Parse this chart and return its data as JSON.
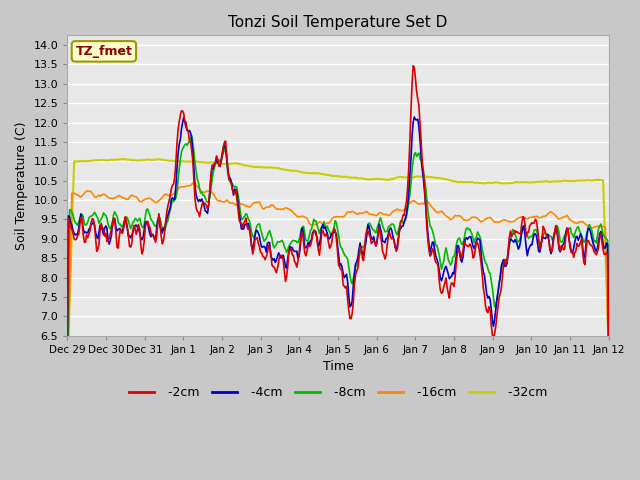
{
  "title": "Tonzi Soil Temperature Set D",
  "xlabel": "Time",
  "ylabel": "Soil Temperature (C)",
  "ylim": [
    6.5,
    14.25
  ],
  "yticks": [
    6.5,
    7.0,
    7.5,
    8.0,
    8.5,
    9.0,
    9.5,
    10.0,
    10.5,
    11.0,
    11.5,
    12.0,
    12.5,
    13.0,
    13.5,
    14.0
  ],
  "bg_color": "#c8c8c8",
  "plot_bg": "#e8e8e8",
  "annotation_label": "TZ_fmet",
  "annotation_color": "#8b0000",
  "annotation_bg": "#ffffcc",
  "series": {
    "-2cm": {
      "color": "#dd0000",
      "lw": 1.2
    },
    "-4cm": {
      "color": "#0000cc",
      "lw": 1.2
    },
    "-8cm": {
      "color": "#00bb00",
      "lw": 1.2
    },
    "-16cm": {
      "color": "#ff8800",
      "lw": 1.2
    },
    "-32cm": {
      "color": "#cccc00",
      "lw": 1.5
    }
  },
  "x_tick_labels": [
    "Dec 29",
    "Dec 30",
    "Dec 31",
    "Jan 1",
    "Jan 2",
    "Jan 3",
    "Jan 4",
    "Jan 5",
    "Jan 6",
    "Jan 7",
    "Jan 8",
    "Jan 9",
    "Jan 10",
    "Jan 11",
    "Jan 12"
  ],
  "n_points": 480
}
